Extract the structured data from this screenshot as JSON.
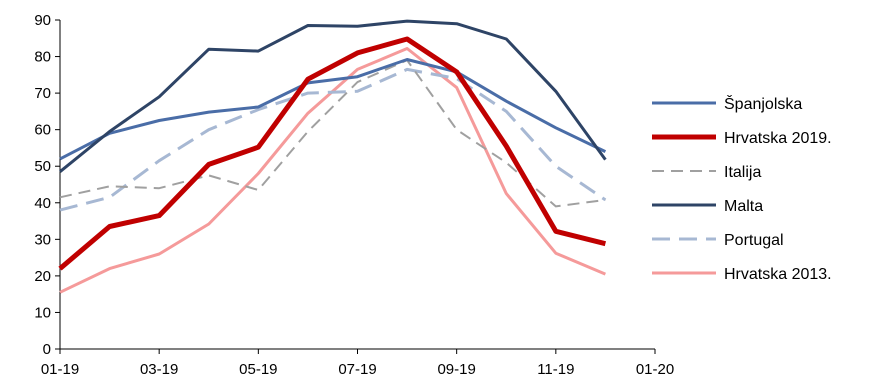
{
  "chart_data": {
    "type": "line",
    "title": "",
    "xlabel": "",
    "ylabel": "",
    "ylim": [
      0,
      90
    ],
    "yticks": [
      0,
      10,
      20,
      30,
      40,
      50,
      60,
      70,
      80,
      90
    ],
    "xtick_labels": [
      "01-19",
      "03-19",
      "05-19",
      "07-19",
      "09-19",
      "11-19",
      "01-20"
    ],
    "x": [
      "01-19",
      "02-19",
      "03-19",
      "04-19",
      "05-19",
      "06-19",
      "07-19",
      "08-19",
      "09-19",
      "10-19",
      "11-19",
      "12-19"
    ],
    "grid": false,
    "legend_position": "right",
    "series": [
      {
        "name": "Španjolska",
        "color": "#4a6da7",
        "dash": "solid",
        "width": "medium",
        "values": [
          52,
          59,
          62.5,
          64.8,
          66.2,
          72.8,
          74.5,
          79.2,
          75.8,
          67.8,
          60.5,
          54
        ]
      },
      {
        "name": "Hrvatska 2019.",
        "color": "#c00000",
        "dash": "solid",
        "width": "thick",
        "values": [
          22,
          33.5,
          36.5,
          50.5,
          55.2,
          73.8,
          81,
          84.8,
          75.8,
          55.5,
          32.2,
          28.8
        ]
      },
      {
        "name": "Italija",
        "color": "#a0a0a0",
        "dash": "dashed",
        "width": "thin",
        "values": [
          41.5,
          44.5,
          44,
          47.5,
          43.5,
          59.5,
          73,
          79,
          60,
          51,
          39,
          40.8
        ]
      },
      {
        "name": "Malta",
        "color": "#2e4466",
        "dash": "solid",
        "width": "medium",
        "values": [
          48.5,
          59.5,
          69,
          82,
          81.5,
          88.5,
          88.3,
          89.7,
          89,
          84.8,
          70.5,
          51.8
        ]
      },
      {
        "name": "Portugal",
        "color": "#a7b8d3",
        "dash": "dashed",
        "width": "medium",
        "values": [
          38,
          41.5,
          51.5,
          60,
          65.5,
          70,
          70.5,
          76.5,
          74,
          65,
          50,
          40.8
        ]
      },
      {
        "name": "Hrvatska 2013.",
        "color": "#f59a9a",
        "dash": "solid",
        "width": "medium",
        "values": [
          15.5,
          22,
          26,
          34.2,
          48,
          64.5,
          76.5,
          82.2,
          71.5,
          42.5,
          26.2,
          20.5
        ]
      }
    ]
  }
}
